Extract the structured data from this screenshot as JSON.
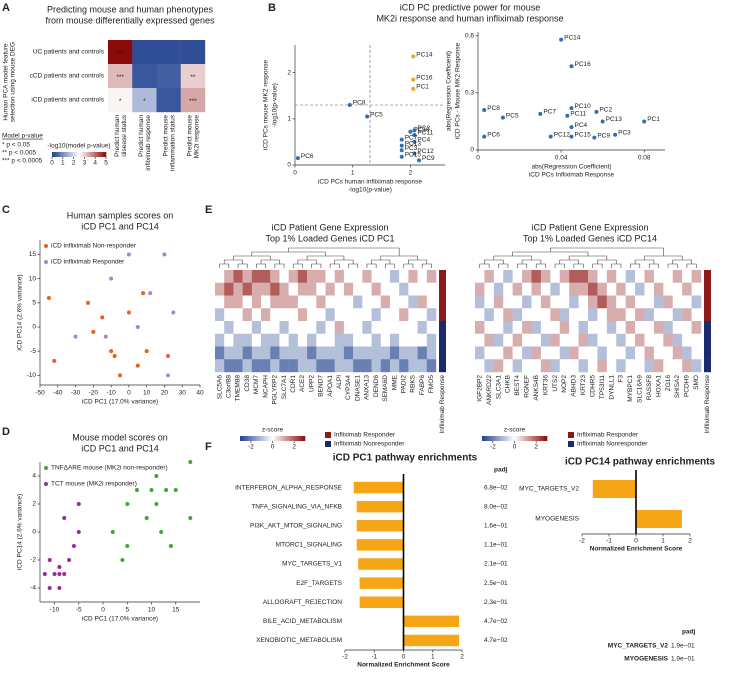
{
  "panel_letters": [
    "A",
    "B",
    "C",
    "D",
    "E",
    "F"
  ],
  "chart_data": [
    {
      "type": "heatmap",
      "title": "Predicting  mouse and human phenotypes",
      "subtitle": "from mouse differentially expressed genes",
      "ylabel": [
        "Human PCA model feature",
        "selection using mouse DEG"
      ],
      "rows": [
        "UC patients and controls",
        "cCD patients and controls",
        "iCD patients and controls"
      ],
      "columns": [
        [
          "Predict human",
          "disease status"
        ],
        [
          "Predict human",
          "infliximab response"
        ],
        [
          "Predict mouse",
          "inflammation status"
        ],
        [
          "Predict mouse",
          "MK2i response"
        ]
      ],
      "matrix": [
        [
          5,
          0.2,
          0.2,
          0.2
        ],
        [
          3.2,
          0.3,
          0.4,
          3.0
        ],
        [
          2.6,
          1.6,
          0.3,
          3.4
        ]
      ],
      "stars": [
        [
          "***",
          null,
          null,
          null
        ],
        [
          "***",
          null,
          null,
          "**"
        ],
        [
          "*",
          "*",
          null,
          "***"
        ]
      ],
      "zlim": [
        0,
        5
      ],
      "zticks": [
        0,
        1,
        2,
        3,
        4,
        5
      ],
      "zlabel": "-log10(model p-value)",
      "legend_title": "Model p-value",
      "legend": [
        "* p < 0.05",
        "** p < 0.005",
        "*** p < 0.0005"
      ]
    },
    {
      "type": "scatter",
      "title": [
        "iCD PC predictive power for mouse",
        "MK2i response and human infliximab response"
      ],
      "xlabel": [
        "iCD PCs human infliximab response",
        "-log10(p-value)"
      ],
      "ylabel": [
        "iCD PCs mouse MK2 response",
        "-log10(p-value)"
      ],
      "point_labels": [
        "PC14",
        "PC16",
        "PC1",
        "PC8",
        "PC5",
        "PC10",
        "PC2",
        "PC11",
        "PC7",
        "PC4",
        "PC13",
        "PC3",
        "PC12",
        "PC15",
        "PC9",
        "PC6"
      ],
      "x": [
        2.05,
        2.05,
        2.05,
        0.95,
        1.25,
        2.0,
        2.07,
        2.07,
        1.85,
        2.07,
        1.85,
        1.85,
        2.07,
        1.85,
        2.15,
        0.05
      ],
      "y": [
        2.35,
        1.85,
        1.65,
        1.3,
        1.05,
        0.72,
        0.75,
        0.65,
        0.55,
        0.5,
        0.42,
        0.32,
        0.25,
        0.18,
        0.1,
        0.15
      ],
      "colors": [
        "#f0a020",
        "#f0a020",
        "#f0a020",
        "#2f6fb5",
        "#2f6fb5",
        "#2f6fb5",
        "#2f6fb5",
        "#2f6fb5",
        "#2f6fb5",
        "#2f6fb5",
        "#2f6fb5",
        "#2f6fb5",
        "#2f6fb5",
        "#2f6fb5",
        "#2f6fb5",
        "#2f6fb5"
      ],
      "thresholds": {
        "x": 1.3,
        "y": 1.3
      },
      "xlim": [
        0,
        2.6
      ],
      "ylim": [
        0,
        2.6
      ],
      "xticks": [
        0,
        1,
        2
      ],
      "yticks": [
        0,
        1,
        2
      ]
    },
    {
      "type": "scatter",
      "xlabel": [
        "abs(Regression Coefficient)",
        "iCD PCs Infliximab Response"
      ],
      "ylabel": [
        "abs(Regression Coefficient)",
        "iCD PCs - Mouse MK2 Response"
      ],
      "point_labels": [
        "PC14",
        "PC16",
        "PC8",
        "PC5",
        "PC7",
        "PC10",
        "PC11",
        "PC2",
        "PC13",
        "PC4",
        "PC1",
        "PC6",
        "PC12",
        "PC15",
        "PC9",
        "PC3"
      ],
      "x": [
        0.04,
        0.045,
        0.003,
        0.012,
        0.03,
        0.045,
        0.043,
        0.057,
        0.06,
        0.045,
        0.08,
        0.003,
        0.035,
        0.045,
        0.056,
        0.066
      ],
      "y": [
        0.58,
        0.44,
        0.21,
        0.17,
        0.19,
        0.22,
        0.18,
        0.2,
        0.15,
        0.12,
        0.15,
        0.07,
        0.07,
        0.07,
        0.065,
        0.08
      ],
      "colors": [
        "#2f6fb5",
        "#2f6fb5",
        "#2f6fb5",
        "#2f6fb5",
        "#2f6fb5",
        "#2f6fb5",
        "#2f6fb5",
        "#2f6fb5",
        "#2f6fb5",
        "#2f6fb5",
        "#2f6fb5",
        "#2f6fb5",
        "#2f6fb5",
        "#2f6fb5",
        "#2f6fb5",
        "#2f6fb5"
      ],
      "xlim": [
        0,
        0.09
      ],
      "ylim": [
        0,
        0.62
      ],
      "xticks": [
        0,
        0.04,
        0.08
      ],
      "yticks": [
        0,
        0.3,
        0.6
      ]
    },
    {
      "type": "scatter",
      "title": [
        "Human samples scores on",
        "iCD PC1 and PC14"
      ],
      "xlabel": "iCD PC1 (17.0% variance)",
      "ylabel": "iCD PC14 (2.6% variance)",
      "series": [
        {
          "name": "iCD infliximab Non-responder",
          "color": "#e8601c",
          "x": [
            -45,
            -42,
            -23,
            -20,
            -15,
            -10,
            -8,
            -5,
            0,
            5,
            10,
            22,
            8
          ],
          "y": [
            6,
            -7,
            5,
            -1,
            2,
            -5,
            -6,
            -10,
            3,
            -8,
            -5,
            -6,
            7
          ]
        },
        {
          "name": "iCD infliximab Responder",
          "color": "#9a8ad0",
          "x": [
            -30,
            -13,
            -10,
            0,
            5,
            12,
            20,
            22,
            25
          ],
          "y": [
            -2,
            -2,
            10,
            15,
            0,
            7,
            15,
            -10,
            3
          ]
        }
      ],
      "xlim": [
        -50,
        40
      ],
      "ylim": [
        -12,
        18
      ],
      "xticks": [
        -50,
        -40,
        -30,
        -20,
        -10,
        0,
        10,
        20,
        30,
        40
      ],
      "yticks": [
        -10,
        -5,
        0,
        5,
        10,
        15
      ]
    },
    {
      "type": "scatter",
      "title": [
        "Mouse model scores on",
        "iCD PC1 and PC14"
      ],
      "xlabel": "iCD PC1 (17.0% variance)",
      "ylabel": "iCD PC14 (2.6% variance)",
      "series": [
        {
          "name": "TNFΔARE mouse (MK2i non-responder)",
          "color": "#3aaa35",
          "x": [
            2,
            5,
            5,
            7,
            9,
            10,
            11,
            11,
            12,
            13,
            14,
            15,
            18,
            18,
            4
          ],
          "y": [
            0,
            2,
            -1,
            3,
            1,
            3,
            4,
            2,
            0,
            3,
            -1,
            3,
            5,
            1,
            -2
          ]
        },
        {
          "name": "TCT mouse (MK2i responder)",
          "color": "#9b2a9b",
          "x": [
            -12,
            -11,
            -11,
            -10,
            -9,
            -9,
            -8,
            -7,
            -6,
            -5,
            -8,
            -5,
            -9
          ],
          "y": [
            -3,
            -2,
            -4,
            -3,
            -2.5,
            -4,
            -3,
            -2,
            -1,
            0,
            1,
            2,
            -3
          ]
        }
      ],
      "xlim": [
        -13,
        20
      ],
      "ylim": [
        -5,
        5
      ],
      "xticks": [
        -10,
        -5,
        0,
        5,
        10,
        15
      ],
      "yticks": [
        -4,
        -2,
        0,
        2,
        4
      ]
    },
    {
      "type": "heatmap",
      "title": "iCD Patient Gene Expression",
      "subtitle": "Top 1% Loaded Genes iCD PC1",
      "columns": [
        "SLC5A6",
        "C3orf88",
        "TMEM88",
        "CD38",
        "MCM7",
        "NCAPH",
        "PGLYRP2",
        "SLC7A1",
        "CDR1",
        "ACE2",
        "UPP2",
        "BEND7",
        "APOA1",
        "ALPI",
        "CYP3A4",
        "DNASE1",
        "ANXA13",
        "DEND6",
        "SEMA6D",
        "MME",
        "PADI2",
        "RBKS",
        "FABP6",
        "FMO5"
      ],
      "matrix": [
        [
          0,
          1,
          2,
          1,
          2,
          2,
          1,
          0,
          1,
          2,
          1,
          1,
          0,
          1,
          0,
          0,
          1,
          0,
          0,
          -1,
          0,
          1,
          0,
          1
        ],
        [
          1,
          2,
          1,
          2,
          1,
          1,
          2,
          1,
          0,
          1,
          1,
          0,
          1,
          0,
          1,
          0,
          0,
          1,
          0,
          0,
          -1,
          0,
          0,
          0
        ],
        [
          0,
          1,
          1,
          0,
          1,
          0,
          1,
          1,
          1,
          0,
          0,
          1,
          0,
          0,
          0,
          -1,
          0,
          0,
          1,
          0,
          0,
          -1,
          1,
          0
        ],
        [
          -1,
          0,
          0,
          1,
          0,
          1,
          0,
          0,
          0,
          1,
          0,
          0,
          -1,
          0,
          0,
          0,
          0,
          -1,
          0,
          0,
          1,
          0,
          0,
          -1
        ],
        [
          0,
          -1,
          0,
          0,
          -1,
          0,
          0,
          -1,
          0,
          0,
          0,
          -1,
          0,
          1,
          0,
          0,
          -1,
          0,
          0,
          0,
          0,
          0,
          -1,
          0
        ],
        [
          -1,
          0,
          -1,
          -1,
          0,
          -1,
          -1,
          0,
          -1,
          0,
          -1,
          0,
          0,
          -1,
          -1,
          0,
          0,
          -1,
          0,
          -1,
          0,
          0,
          0,
          -1
        ],
        [
          -2,
          -1,
          -1,
          -2,
          -1,
          -1,
          -2,
          -1,
          -1,
          -1,
          -2,
          -1,
          -1,
          -1,
          -2,
          -1,
          -1,
          -1,
          -1,
          -2,
          -1,
          -1,
          -2,
          -1
        ],
        [
          -1,
          -2,
          -2,
          -1,
          -2,
          -2,
          -1,
          -2,
          -2,
          -1,
          -1,
          -2,
          -2,
          -1,
          -1,
          -2,
          -2,
          -1,
          -2,
          -1,
          -2,
          -1,
          -1,
          -2
        ]
      ],
      "response": [
        0,
        0,
        0,
        0,
        1,
        1,
        1,
        1
      ],
      "response_label": "Infliximab Response",
      "response_legend": [
        {
          "name": "Infliximab Responder",
          "color": "#8b1a1a"
        },
        {
          "name": "Infliximab Nonresponder",
          "color": "#1a2a6c"
        }
      ],
      "zlim": [
        -3,
        3
      ],
      "zticks": [
        -2,
        0,
        2
      ],
      "zlabel": "z-score"
    },
    {
      "type": "heatmap",
      "title": "iCD Patient Gene Expression",
      "subtitle": "Top 1% Loaded Genes iCD PC14",
      "columns": [
        "IGF2BP2",
        "ANKRD22",
        "SLC3A1",
        "CHKB",
        "BEST4",
        "RGNEF",
        "ANKS4B",
        "KRT36",
        "UTS2",
        "NOP2",
        "ABHD3",
        "KRT23",
        "CDHR5",
        "TP53I11",
        "DYNLL1",
        "F3",
        "MYBPC1",
        "SLC16A9",
        "RASSF8",
        "HOXA1",
        "ZG16",
        "SHISA2",
        "PCDH9",
        "SMO"
      ],
      "matrix": [
        [
          0,
          1,
          0,
          -1,
          0,
          1,
          2,
          1,
          0,
          1,
          2,
          2,
          1,
          0,
          1,
          0,
          -1,
          0,
          1,
          0,
          0,
          1,
          0,
          1
        ],
        [
          1,
          0,
          -1,
          0,
          1,
          0,
          1,
          0,
          -1,
          0,
          1,
          1,
          2,
          1,
          0,
          1,
          0,
          -1,
          0,
          1,
          0,
          0,
          1,
          0
        ],
        [
          -1,
          0,
          1,
          0,
          0,
          -1,
          0,
          1,
          0,
          0,
          -1,
          0,
          1,
          2,
          1,
          0,
          1,
          0,
          0,
          -1,
          1,
          0,
          0,
          -1
        ],
        [
          0,
          -1,
          0,
          1,
          -1,
          0,
          0,
          0,
          1,
          -1,
          0,
          0,
          -1,
          0,
          1,
          1,
          0,
          1,
          -1,
          0,
          0,
          -1,
          1,
          0
        ],
        [
          1,
          0,
          0,
          -1,
          0,
          1,
          -1,
          0,
          0,
          1,
          0,
          -1,
          0,
          0,
          -1,
          0,
          1,
          0,
          0,
          1,
          -1,
          0,
          0,
          1
        ],
        [
          0,
          1,
          -1,
          0,
          1,
          0,
          0,
          -1,
          1,
          0,
          0,
          1,
          -1,
          0,
          0,
          -1,
          0,
          1,
          0,
          0,
          1,
          -1,
          0,
          0
        ],
        [
          -1,
          0,
          0,
          1,
          0,
          -1,
          1,
          0,
          0,
          -1,
          1,
          0,
          0,
          -1,
          0,
          0,
          -1,
          0,
          1,
          0,
          0,
          1,
          -1,
          0
        ],
        [
          0,
          -1,
          1,
          0,
          -1,
          0,
          0,
          1,
          -1,
          0,
          0,
          -1,
          0,
          1,
          0,
          -1,
          0,
          0,
          -1,
          1,
          0,
          0,
          1,
          -1
        ]
      ],
      "response": [
        0,
        0,
        0,
        0,
        1,
        1,
        1,
        1
      ],
      "response_label": "Infliximab Response",
      "response_legend": [
        {
          "name": "Infliximab Responder",
          "color": "#8b1a1a"
        },
        {
          "name": "Infliximab Nonresponder",
          "color": "#1a2a6c"
        }
      ],
      "zlim": [
        -3,
        3
      ],
      "zticks": [
        -2,
        0,
        2
      ],
      "zlabel": "z-score"
    },
    {
      "type": "bar",
      "orientation": "horizontal",
      "title": "iCD PC1 pathway enrichments",
      "color": "#f5a516",
      "categories": [
        "INTERFERON_ALPHA_RESPONSE",
        "TNFA_SIGNALING_VIA_NFKB",
        "PI3K_AKT_MTOR_SIGNALING",
        "MTORC1_SIGNALING",
        "MYC_TARGETS_V1",
        "E2F_TARGETS",
        "ALLOGRAFT_REJECTION",
        "BILE_ACID_METABOLISM",
        "XENOBIOTIC_METABOLISM"
      ],
      "values": [
        -1.7,
        -1.6,
        -1.6,
        -1.6,
        -1.55,
        -1.5,
        -1.5,
        1.9,
        1.9
      ],
      "padj_title": "padj",
      "padj": [
        "6.8e−02",
        "8.0e−02",
        "1.6e−01",
        "1.1e−01",
        "2.1e−01",
        "2.5e−01",
        "2.3e−01",
        "4.7e−02",
        "4.7e−02"
      ],
      "xlim": [
        -2,
        2
      ],
      "xticks": [
        -2,
        -1,
        0,
        1,
        2
      ],
      "xlabel": "Normalized Enrichment Score"
    },
    {
      "type": "bar",
      "orientation": "horizontal",
      "title": "iCD PC14 pathway enrichments",
      "color": "#f5a516",
      "categories": [
        "MYC_TARGETS_V2",
        "MYOGENESIS"
      ],
      "values": [
        -1.6,
        1.7
      ],
      "padj_title": "padj",
      "padj": [
        "1.9e−01",
        "1.9e−01"
      ],
      "xlim": [
        -2,
        2
      ],
      "xticks": [
        -2,
        -1,
        0,
        1,
        2
      ],
      "xlabel": "Normalized Enrichment Score"
    }
  ]
}
